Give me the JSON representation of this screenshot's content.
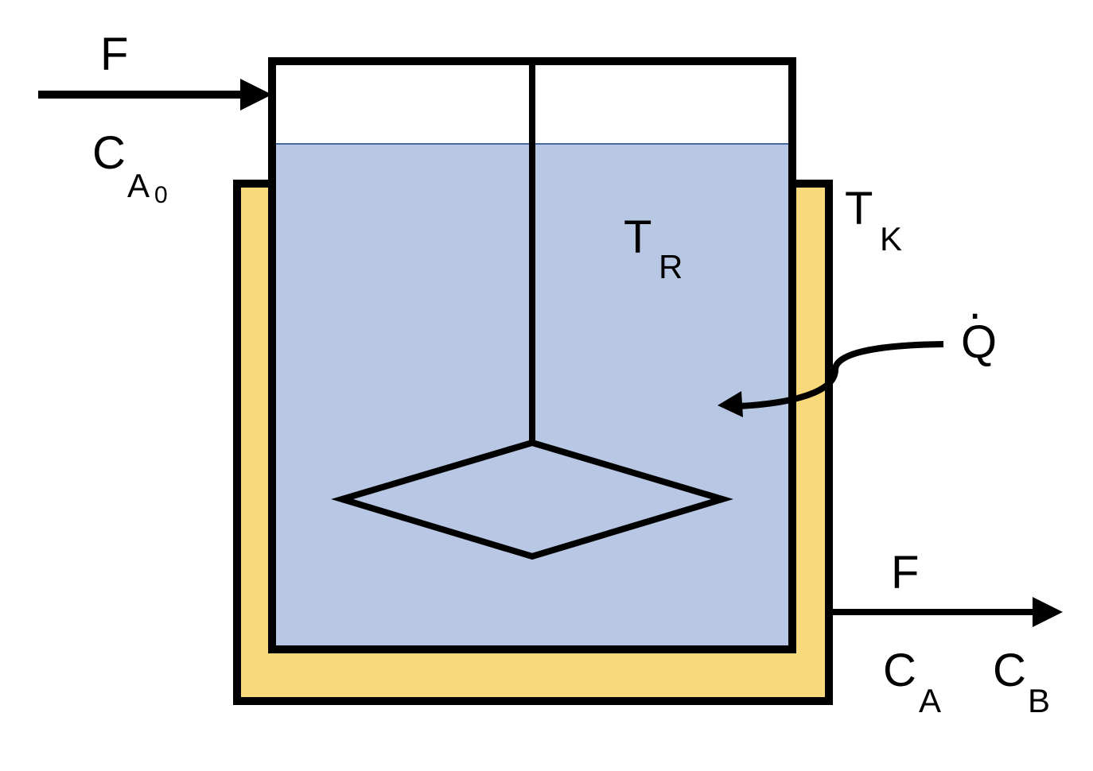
{
  "colors": {
    "jacket": "#f8d97b",
    "liquid": "#b8c7e3",
    "liquid_surface": "#4a6aa0",
    "stroke": "#000000",
    "background": "#ffffff"
  },
  "inlet": {
    "flow_label": "F",
    "conc_label": "C",
    "conc_sub": "A",
    "conc_subsub": "0"
  },
  "reactor": {
    "temp_label": "T",
    "temp_sub": "R"
  },
  "jacket": {
    "temp_label": "T",
    "temp_sub": "K"
  },
  "heat": {
    "label": "Q",
    "dot": "·"
  },
  "outlet": {
    "flow_label": "F",
    "conc_a_label": "C",
    "conc_a_sub": "A",
    "conc_b_label": "C",
    "conc_b_sub": "B"
  }
}
